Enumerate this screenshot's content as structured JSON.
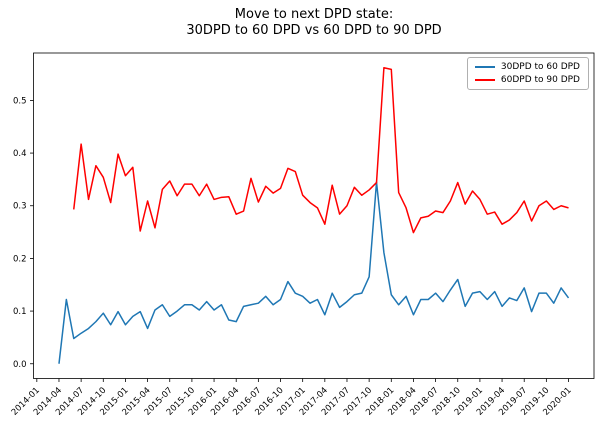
{
  "figure": {
    "title_line1": "Move to next DPD state:",
    "title_line2": "30DPD to 60 DPD vs 60 DPD to 90 DPD"
  },
  "legend": {
    "position": "upper right",
    "items": [
      {
        "label": "30DPD to 60 DPD",
        "color": "#1f77b4"
      },
      {
        "label": "60DPD to 90 DPD",
        "color": "#ff0000"
      }
    ]
  },
  "chart_data": {
    "type": "line",
    "title": "Move to next DPD state:\n30DPD to 60 DPD vs 60 DPD to 90 DPD",
    "xlabel": "",
    "ylabel": "",
    "grid": false,
    "legend_position": "upper right",
    "ylim": [
      -0.028,
      0.59
    ],
    "yticks": [
      0.0,
      0.1,
      0.2,
      0.3,
      0.4,
      0.5
    ],
    "xticks": [
      "2014-01",
      "2014-04",
      "2014-07",
      "2014-10",
      "2015-01",
      "2015-04",
      "2015-07",
      "2015-10",
      "2016-01",
      "2016-04",
      "2016-07",
      "2016-10",
      "2017-01",
      "2017-04",
      "2017-07",
      "2017-10",
      "2018-01",
      "2018-04",
      "2018-07",
      "2018-10",
      "2019-01",
      "2019-04",
      "2019-07",
      "2019-10",
      "2020-01"
    ],
    "x_frequency": "monthly",
    "series": [
      {
        "name": "30DPD to 60 DPD",
        "color": "#1f77b4",
        "x_start": "2014-04",
        "x_end": "2020-01",
        "values": [
          0.0,
          0.122,
          0.048,
          0.058,
          0.067,
          0.08,
          0.096,
          0.074,
          0.099,
          0.074,
          0.09,
          0.099,
          0.067,
          0.102,
          0.112,
          0.09,
          0.1,
          0.112,
          0.112,
          0.102,
          0.118,
          0.102,
          0.112,
          0.083,
          0.08,
          0.109,
          0.112,
          0.115,
          0.128,
          0.112,
          0.122,
          0.156,
          0.134,
          0.128,
          0.115,
          0.122,
          0.093,
          0.134,
          0.107,
          0.118,
          0.131,
          0.134,
          0.165,
          0.345,
          0.211,
          0.131,
          0.112,
          0.128,
          0.093,
          0.122,
          0.122,
          0.134,
          0.118,
          0.14,
          0.16,
          0.109,
          0.134,
          0.137,
          0.122,
          0.137,
          0.109,
          0.125,
          0.12,
          0.144,
          0.099,
          0.134,
          0.134,
          0.115,
          0.144,
          0.125
        ]
      },
      {
        "name": "60DPD to 90 DPD",
        "color": "#ff0000",
        "x_start": "2014-06",
        "x_end": "2020-01",
        "values": [
          0.293,
          0.417,
          0.312,
          0.376,
          0.354,
          0.306,
          0.398,
          0.357,
          0.373,
          0.252,
          0.309,
          0.258,
          0.331,
          0.347,
          0.319,
          0.341,
          0.341,
          0.319,
          0.341,
          0.312,
          0.316,
          0.317,
          0.284,
          0.29,
          0.352,
          0.307,
          0.337,
          0.324,
          0.333,
          0.371,
          0.365,
          0.32,
          0.306,
          0.296,
          0.265,
          0.339,
          0.284,
          0.3,
          0.335,
          0.32,
          0.33,
          0.344,
          0.562,
          0.559,
          0.325,
          0.296,
          0.249,
          0.277,
          0.28,
          0.29,
          0.287,
          0.309,
          0.344,
          0.303,
          0.328,
          0.312,
          0.284,
          0.288,
          0.265,
          0.273,
          0.287,
          0.309,
          0.271,
          0.3,
          0.309,
          0.293,
          0.3,
          0.296
        ]
      }
    ]
  }
}
